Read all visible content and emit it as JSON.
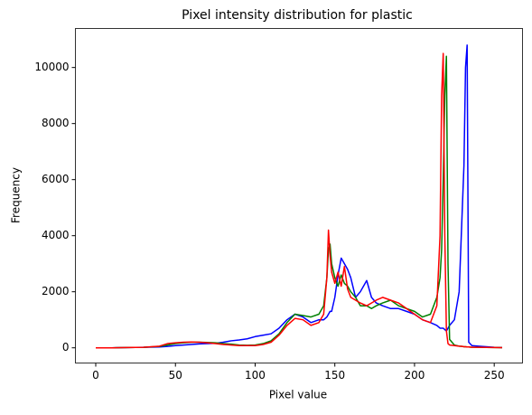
{
  "chart_data": {
    "type": "line",
    "title": "Pixel intensity distribution for plastic",
    "xlabel": "Pixel value",
    "ylabel": "Frequency",
    "x": [
      0,
      10,
      20,
      30,
      40,
      45,
      50,
      55,
      60,
      65,
      70,
      75,
      80,
      85,
      90,
      95,
      100,
      105,
      110,
      115,
      120,
      125,
      130,
      135,
      140,
      143,
      145,
      146,
      147,
      148,
      150,
      152,
      154,
      156,
      158,
      160,
      163,
      166,
      170,
      173,
      176,
      180,
      185,
      190,
      195,
      200,
      205,
      210,
      214,
      216,
      217,
      218,
      219,
      220,
      221,
      222,
      225,
      228,
      230,
      231,
      232,
      233,
      234,
      236,
      240,
      245,
      250,
      255
    ],
    "series": [
      {
        "name": "blue",
        "color": "#0000ff",
        "values": [
          0,
          0,
          10,
          20,
          30,
          50,
          80,
          100,
          120,
          140,
          150,
          160,
          200,
          250,
          280,
          320,
          400,
          450,
          500,
          700,
          1000,
          1200,
          1100,
          900,
          1000,
          1000,
          1100,
          1200,
          1300,
          1300,
          1800,
          2600,
          3200,
          3000,
          2800,
          2500,
          1800,
          2000,
          2400,
          1800,
          1600,
          1500,
          1400,
          1400,
          1300,
          1200,
          1000,
          900,
          800,
          700,
          700,
          700,
          650,
          600,
          700,
          800,
          1000,
          2000,
          5000,
          6500,
          10000,
          10800,
          200,
          80,
          60,
          40,
          20,
          10
        ]
      },
      {
        "name": "green",
        "color": "#008000",
        "values": [
          0,
          0,
          10,
          20,
          50,
          100,
          150,
          180,
          200,
          200,
          190,
          180,
          150,
          130,
          100,
          90,
          100,
          150,
          250,
          500,
          900,
          1200,
          1150,
          1100,
          1200,
          1500,
          2500,
          3500,
          3700,
          3000,
          2500,
          2200,
          2600,
          2300,
          2200,
          2000,
          1800,
          1500,
          1500,
          1400,
          1500,
          1600,
          1700,
          1500,
          1400,
          1300,
          1100,
          1200,
          1800,
          2500,
          3500,
          6000,
          9000,
          10400,
          3000,
          300,
          100,
          60,
          50,
          40,
          40,
          30,
          30,
          20,
          20,
          15,
          10,
          5
        ]
      },
      {
        "name": "red",
        "color": "#ff0000",
        "values": [
          0,
          0,
          10,
          20,
          60,
          150,
          180,
          200,
          210,
          200,
          180,
          150,
          120,
          100,
          80,
          80,
          80,
          120,
          200,
          450,
          800,
          1050,
          1000,
          800,
          900,
          1200,
          2500,
          4200,
          3300,
          2700,
          2300,
          2700,
          2200,
          2900,
          2100,
          1800,
          1700,
          1600,
          1500,
          1600,
          1700,
          1800,
          1700,
          1600,
          1400,
          1200,
          1000,
          900,
          1500,
          4000,
          9000,
          10500,
          4000,
          600,
          150,
          100,
          80,
          60,
          50,
          40,
          40,
          30,
          30,
          20,
          20,
          15,
          10,
          5
        ]
      }
    ],
    "xlim": [
      -12.75,
      267.75
    ],
    "xticks": [
      0,
      50,
      100,
      150,
      200,
      250
    ],
    "ylim": [
      -542,
      11392
    ],
    "yticks": [
      0,
      2000,
      4000,
      6000,
      8000,
      10000
    ],
    "grid": false
  }
}
